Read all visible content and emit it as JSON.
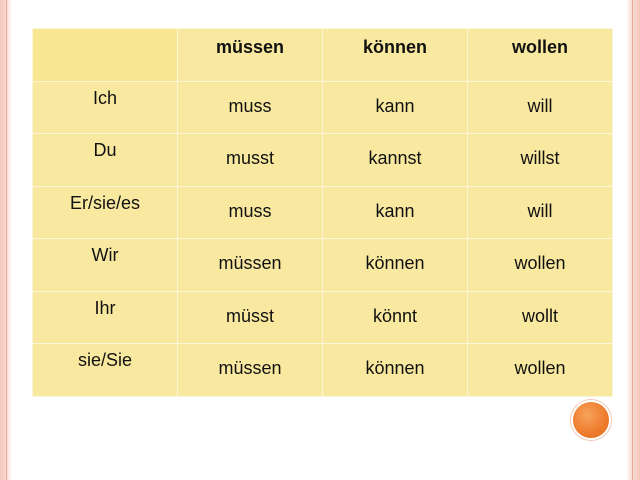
{
  "table": {
    "headers": [
      "",
      "müssen",
      "können",
      "wollen"
    ],
    "rows": [
      {
        "pronoun": "Ich",
        "muessen": "muss",
        "koennen": "kann",
        "wollen": "will"
      },
      {
        "pronoun": "Du",
        "muessen": "musst",
        "koennen": "kannst",
        "wollen": "willst"
      },
      {
        "pronoun": "Er/sie/es",
        "muessen": "muss",
        "koennen": "kann",
        "wollen": "will"
      },
      {
        "pronoun": "Wir",
        "muessen": "müssen",
        "koennen": "können",
        "wollen": "wollen"
      },
      {
        "pronoun": "Ihr",
        "muessen": "müsst",
        "koennen": "könnt",
        "wollen": "wollt"
      },
      {
        "pronoun": "sie/Sie",
        "muessen": "müssen",
        "koennen": "können",
        "wollen": "wollen"
      }
    ]
  },
  "colors": {
    "cell_fill": "#f9e9a0",
    "cell_border": "#fbf6d8",
    "frame": "#f3c6b9",
    "accent_circle": "#ee7a2c"
  }
}
